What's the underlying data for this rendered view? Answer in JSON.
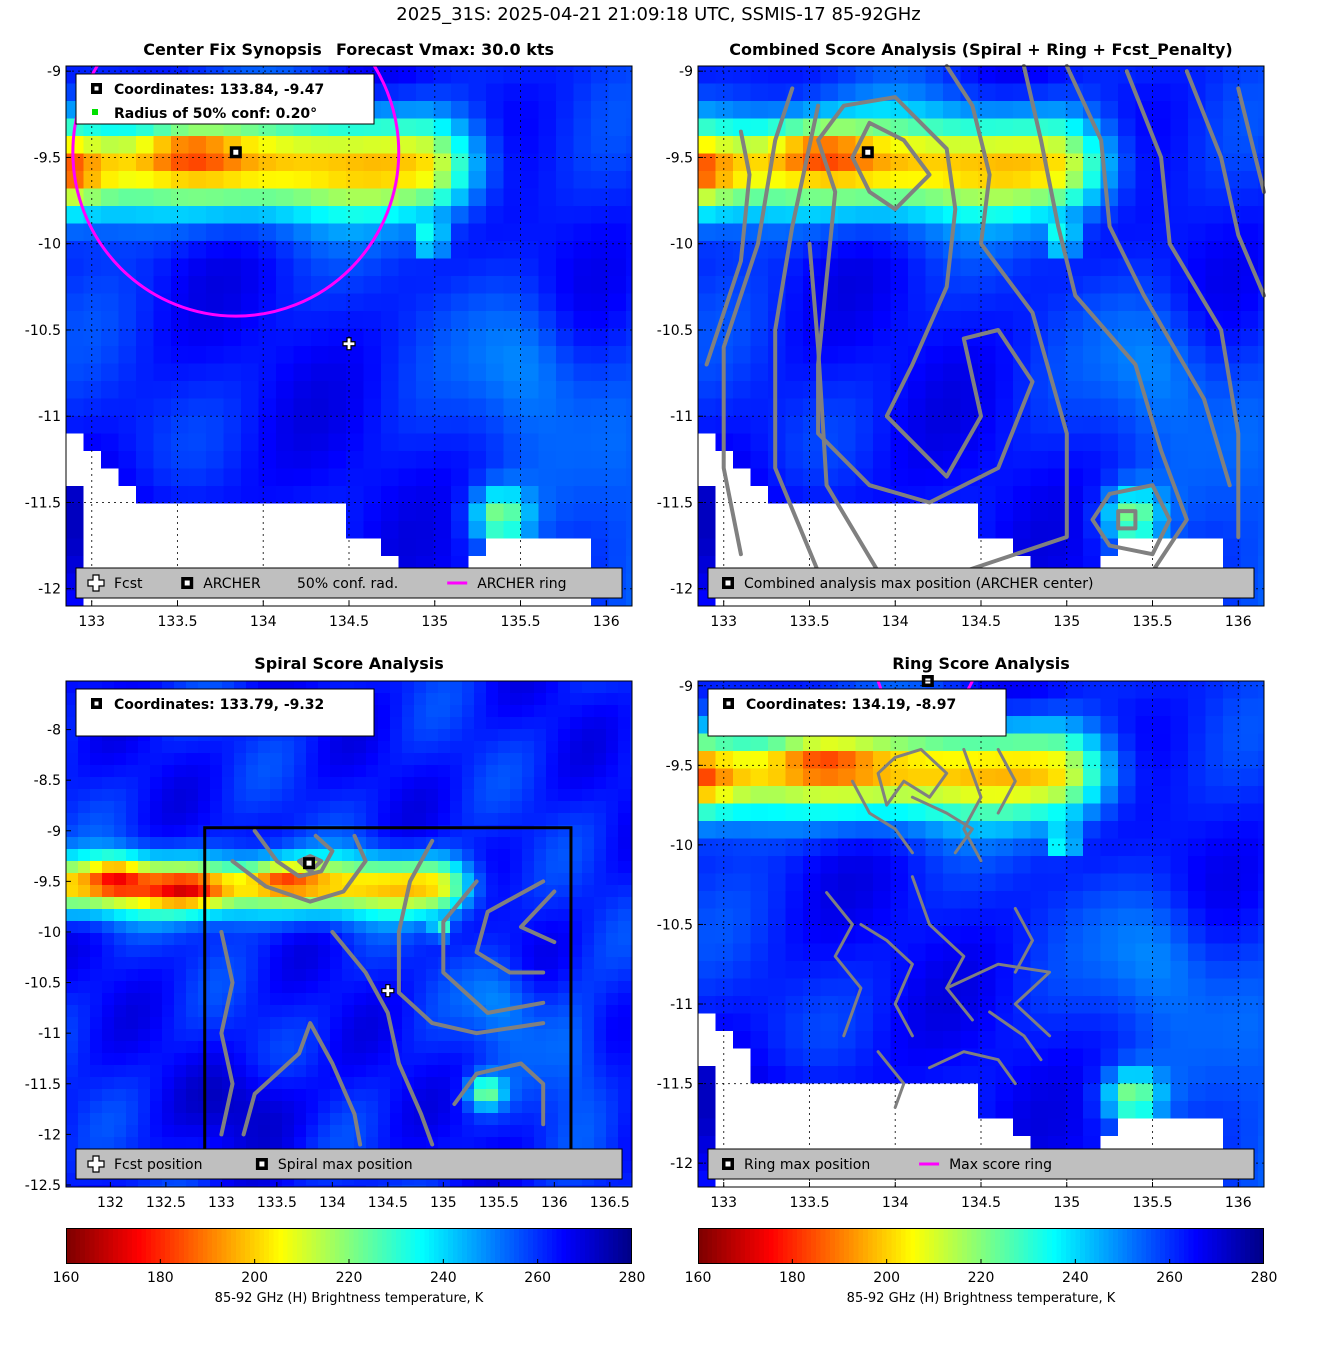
{
  "suptitle": "2025_31S: 2025-04-21 21:09:18 UTC, SSMIS-17 85-92GHz",
  "colors": {
    "ring": "#ff00ff",
    "contour": "#808080",
    "legend_bg": "#bfbfbf",
    "land": "#ffffff"
  },
  "panels": [
    {
      "id": "synopsis",
      "title": "Center Fix Synopsis",
      "title2": "Forecast Vmax: 30.0 kts",
      "info_lines": [
        "Coordinates: 133.84, -9.47",
        "Radius of 50% conf: 0.20°"
      ],
      "info_markers": [
        "archer-square",
        "green-dot"
      ],
      "legend": [
        {
          "marker": "fcst-cross",
          "label": "Fcst"
        },
        {
          "marker": "archer-square",
          "label": "ARCHER"
        },
        {
          "marker": "none",
          "label": "50% conf. rad."
        },
        {
          "marker": "magenta-line",
          "label": "ARCHER ring"
        }
      ]
    },
    {
      "id": "combined",
      "title": "Combined Score Analysis (Spiral + Ring + Fcst_Penalty)",
      "legend": [
        {
          "marker": "archer-square",
          "label": "Combined analysis max position (ARCHER center)"
        }
      ]
    },
    {
      "id": "spiral",
      "title": "Spiral Score Analysis",
      "info_lines": [
        "Coordinates: 133.79, -9.32"
      ],
      "info_markers": [
        "archer-square"
      ],
      "legend": [
        {
          "marker": "fcst-cross",
          "label": "Fcst position"
        },
        {
          "marker": "archer-square",
          "label": "Spiral max position"
        }
      ]
    },
    {
      "id": "ring",
      "title": "Ring Score Analysis",
      "info_lines": [
        "Coordinates: 134.19, -8.97"
      ],
      "info_markers": [
        "archer-square"
      ],
      "legend": [
        {
          "marker": "archer-square",
          "label": "Ring max position"
        },
        {
          "marker": "magenta-line",
          "label": "Max score ring"
        }
      ]
    }
  ],
  "colorbars": [
    {
      "ticks": [
        "160",
        "180",
        "200",
        "220",
        "240",
        "260",
        "280"
      ],
      "label": "85-92 GHz (H) Brightness temperature, K"
    },
    {
      "ticks": [
        "160",
        "180",
        "200",
        "220",
        "240",
        "260",
        "280"
      ],
      "label": "85-92 GHz (H) Brightness temperature, K"
    }
  ],
  "chart_data": [
    {
      "type": "heatmap",
      "title": "Center Fix Synopsis",
      "subtitle": "Forecast Vmax: 30.0 kts",
      "xticks": [
        "133",
        "133.5",
        "134",
        "134.5",
        "135",
        "135.5",
        "136"
      ],
      "yticks": [
        "-9",
        "-9.5",
        "-10",
        "-10.5",
        "-11",
        "-11.5",
        "-12"
      ],
      "xlim": [
        132.85,
        136.15
      ],
      "ylim": [
        -12.1,
        -8.97
      ],
      "grid": true,
      "colormap": "jet",
      "clim": [
        160,
        280
      ],
      "archer_center": [
        133.84,
        -9.47
      ],
      "forecast_position": [
        134.5,
        -10.58
      ],
      "conf_radius_deg": 0.2,
      "ring_center": [
        133.84,
        -9.47
      ],
      "ring_radius_deg": 0.95,
      "legend_position": "bottom"
    },
    {
      "type": "heatmap",
      "title": "Combined Score Analysis (Spiral + Ring + Fcst_Penalty)",
      "xticks": [
        "133",
        "133.5",
        "134",
        "134.5",
        "135",
        "135.5",
        "136"
      ],
      "yticks": [
        "-9",
        "-9.5",
        "-10",
        "-10.5",
        "-11",
        "-11.5",
        "-12"
      ],
      "xlim": [
        132.85,
        136.15
      ],
      "ylim": [
        -12.1,
        -8.97
      ],
      "grid": true,
      "colormap": "jet",
      "clim": [
        160,
        280
      ],
      "max_position": [
        133.84,
        -9.47
      ],
      "contours": "score contours (gray)",
      "legend_position": "bottom"
    },
    {
      "type": "heatmap",
      "title": "Spiral Score Analysis",
      "xticks": [
        "132",
        "132.5",
        "133",
        "133.5",
        "134",
        "134.5",
        "135",
        "135.5",
        "136",
        "136.5"
      ],
      "yticks": [
        "-8",
        "-8.5",
        "-9",
        "-9.5",
        "-10",
        "-10.5",
        "-11",
        "-11.5",
        "-12",
        "-12.5"
      ],
      "xlim": [
        131.6,
        136.7
      ],
      "ylim": [
        -12.52,
        -7.52
      ],
      "grid": false,
      "colormap": "jet",
      "clim": [
        160,
        280
      ],
      "max_position": [
        133.79,
        -9.32
      ],
      "forecast_position": [
        134.5,
        -10.58
      ],
      "search_box": {
        "x": [
          132.85,
          136.15
        ],
        "y": [
          -12.2,
          -8.97
        ]
      },
      "legend_position": "bottom"
    },
    {
      "type": "heatmap",
      "title": "Ring Score Analysis",
      "xticks": [
        "133",
        "133.5",
        "134",
        "134.5",
        "135",
        "135.5",
        "136"
      ],
      "yticks": [
        "-9",
        "-9.5",
        "-10",
        "-10.5",
        "-11",
        "-11.5",
        "-12"
      ],
      "xlim": [
        132.85,
        136.15
      ],
      "ylim": [
        -12.15,
        -8.97
      ],
      "grid": true,
      "colormap": "jet",
      "clim": [
        160,
        280
      ],
      "max_position": [
        134.19,
        -8.97
      ],
      "legend_position": "bottom"
    }
  ]
}
